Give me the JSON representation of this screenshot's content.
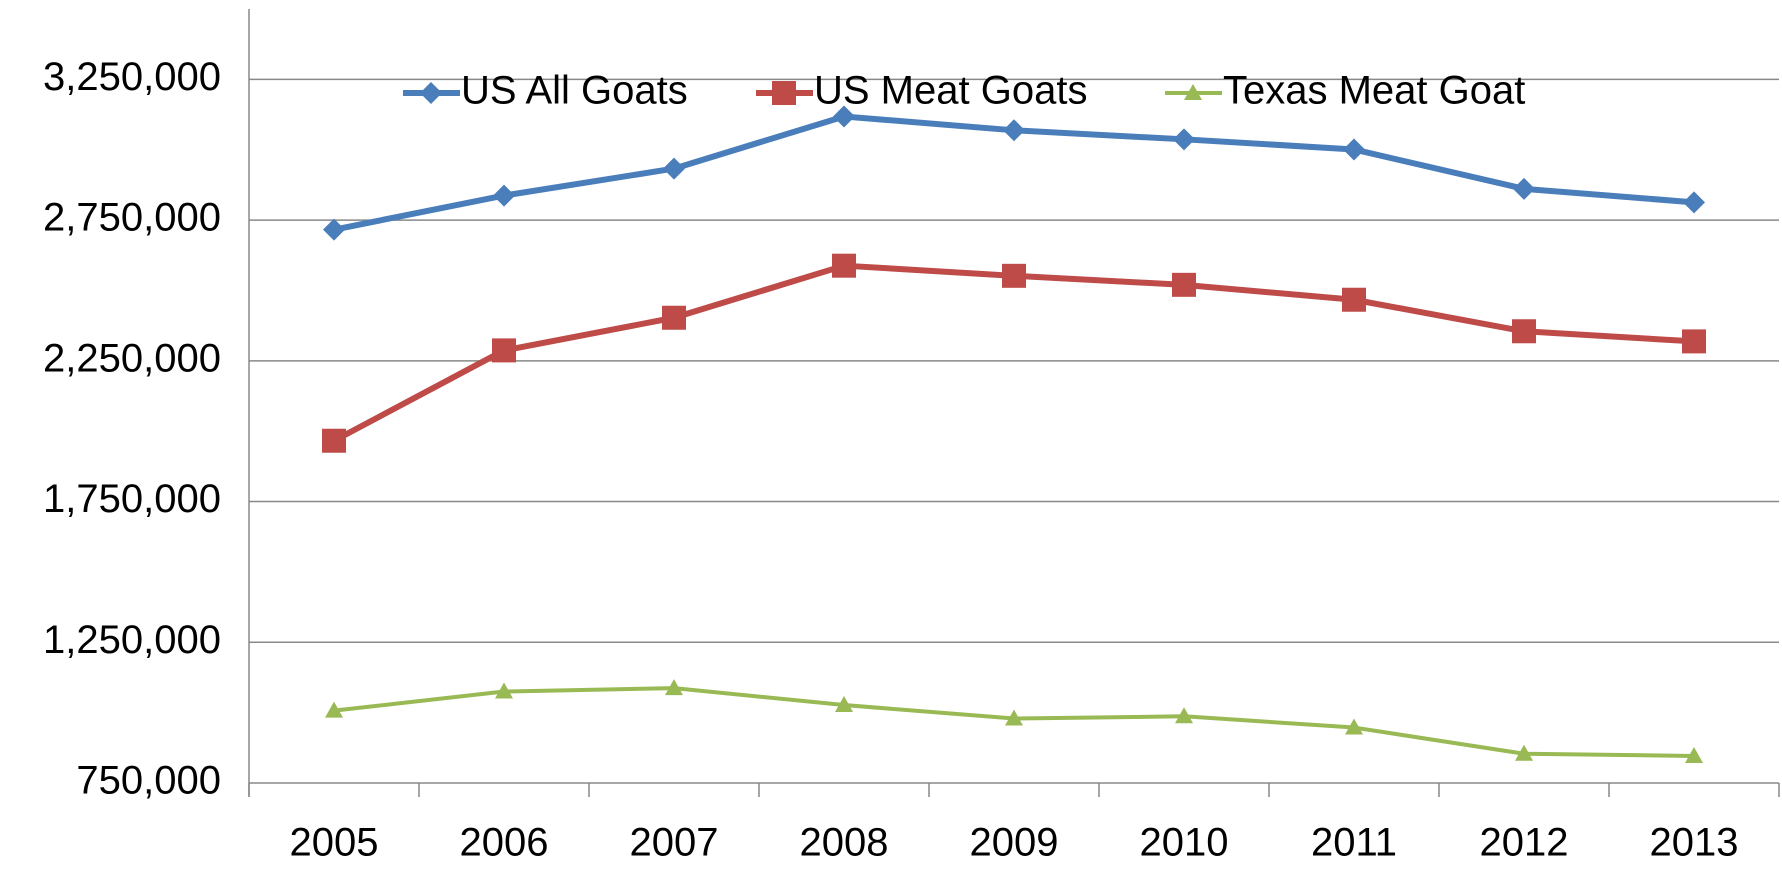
{
  "chart_data": {
    "type": "line",
    "categories": [
      "2005",
      "2006",
      "2007",
      "2008",
      "2009",
      "2010",
      "2011",
      "2012",
      "2013"
    ],
    "series": [
      {
        "name": "US All Goats",
        "color": "#4a7ebb",
        "marker": "diamond",
        "values": [
          2716000,
          2837000,
          2933000,
          3118000,
          3069000,
          3037000,
          3001000,
          2861000,
          2813000
        ]
      },
      {
        "name": "US Meat Goats",
        "color": "#be4b48",
        "marker": "square",
        "values": [
          1966000,
          2287000,
          2403000,
          2588000,
          2552000,
          2520000,
          2467000,
          2355000,
          2319000
        ]
      },
      {
        "name": "Texas Meat Goat",
        "color": "#98b954",
        "marker": "triangle",
        "values": [
          1007000,
          1075000,
          1087000,
          1027000,
          979000,
          987000,
          947000,
          854000,
          846000
        ]
      }
    ],
    "ylim": [
      750000,
      3500000
    ],
    "yticks": [
      {
        "value": 750000,
        "label": "750,000"
      },
      {
        "value": 1250000,
        "label": "1,250,000"
      },
      {
        "value": 1750000,
        "label": "1,750,000"
      },
      {
        "value": 2250000,
        "label": "2,250,000"
      },
      {
        "value": 2750000,
        "label": "2,750,000"
      },
      {
        "value": 3250000,
        "label": "3,250,000"
      }
    ],
    "grid": true,
    "legend": "top"
  }
}
